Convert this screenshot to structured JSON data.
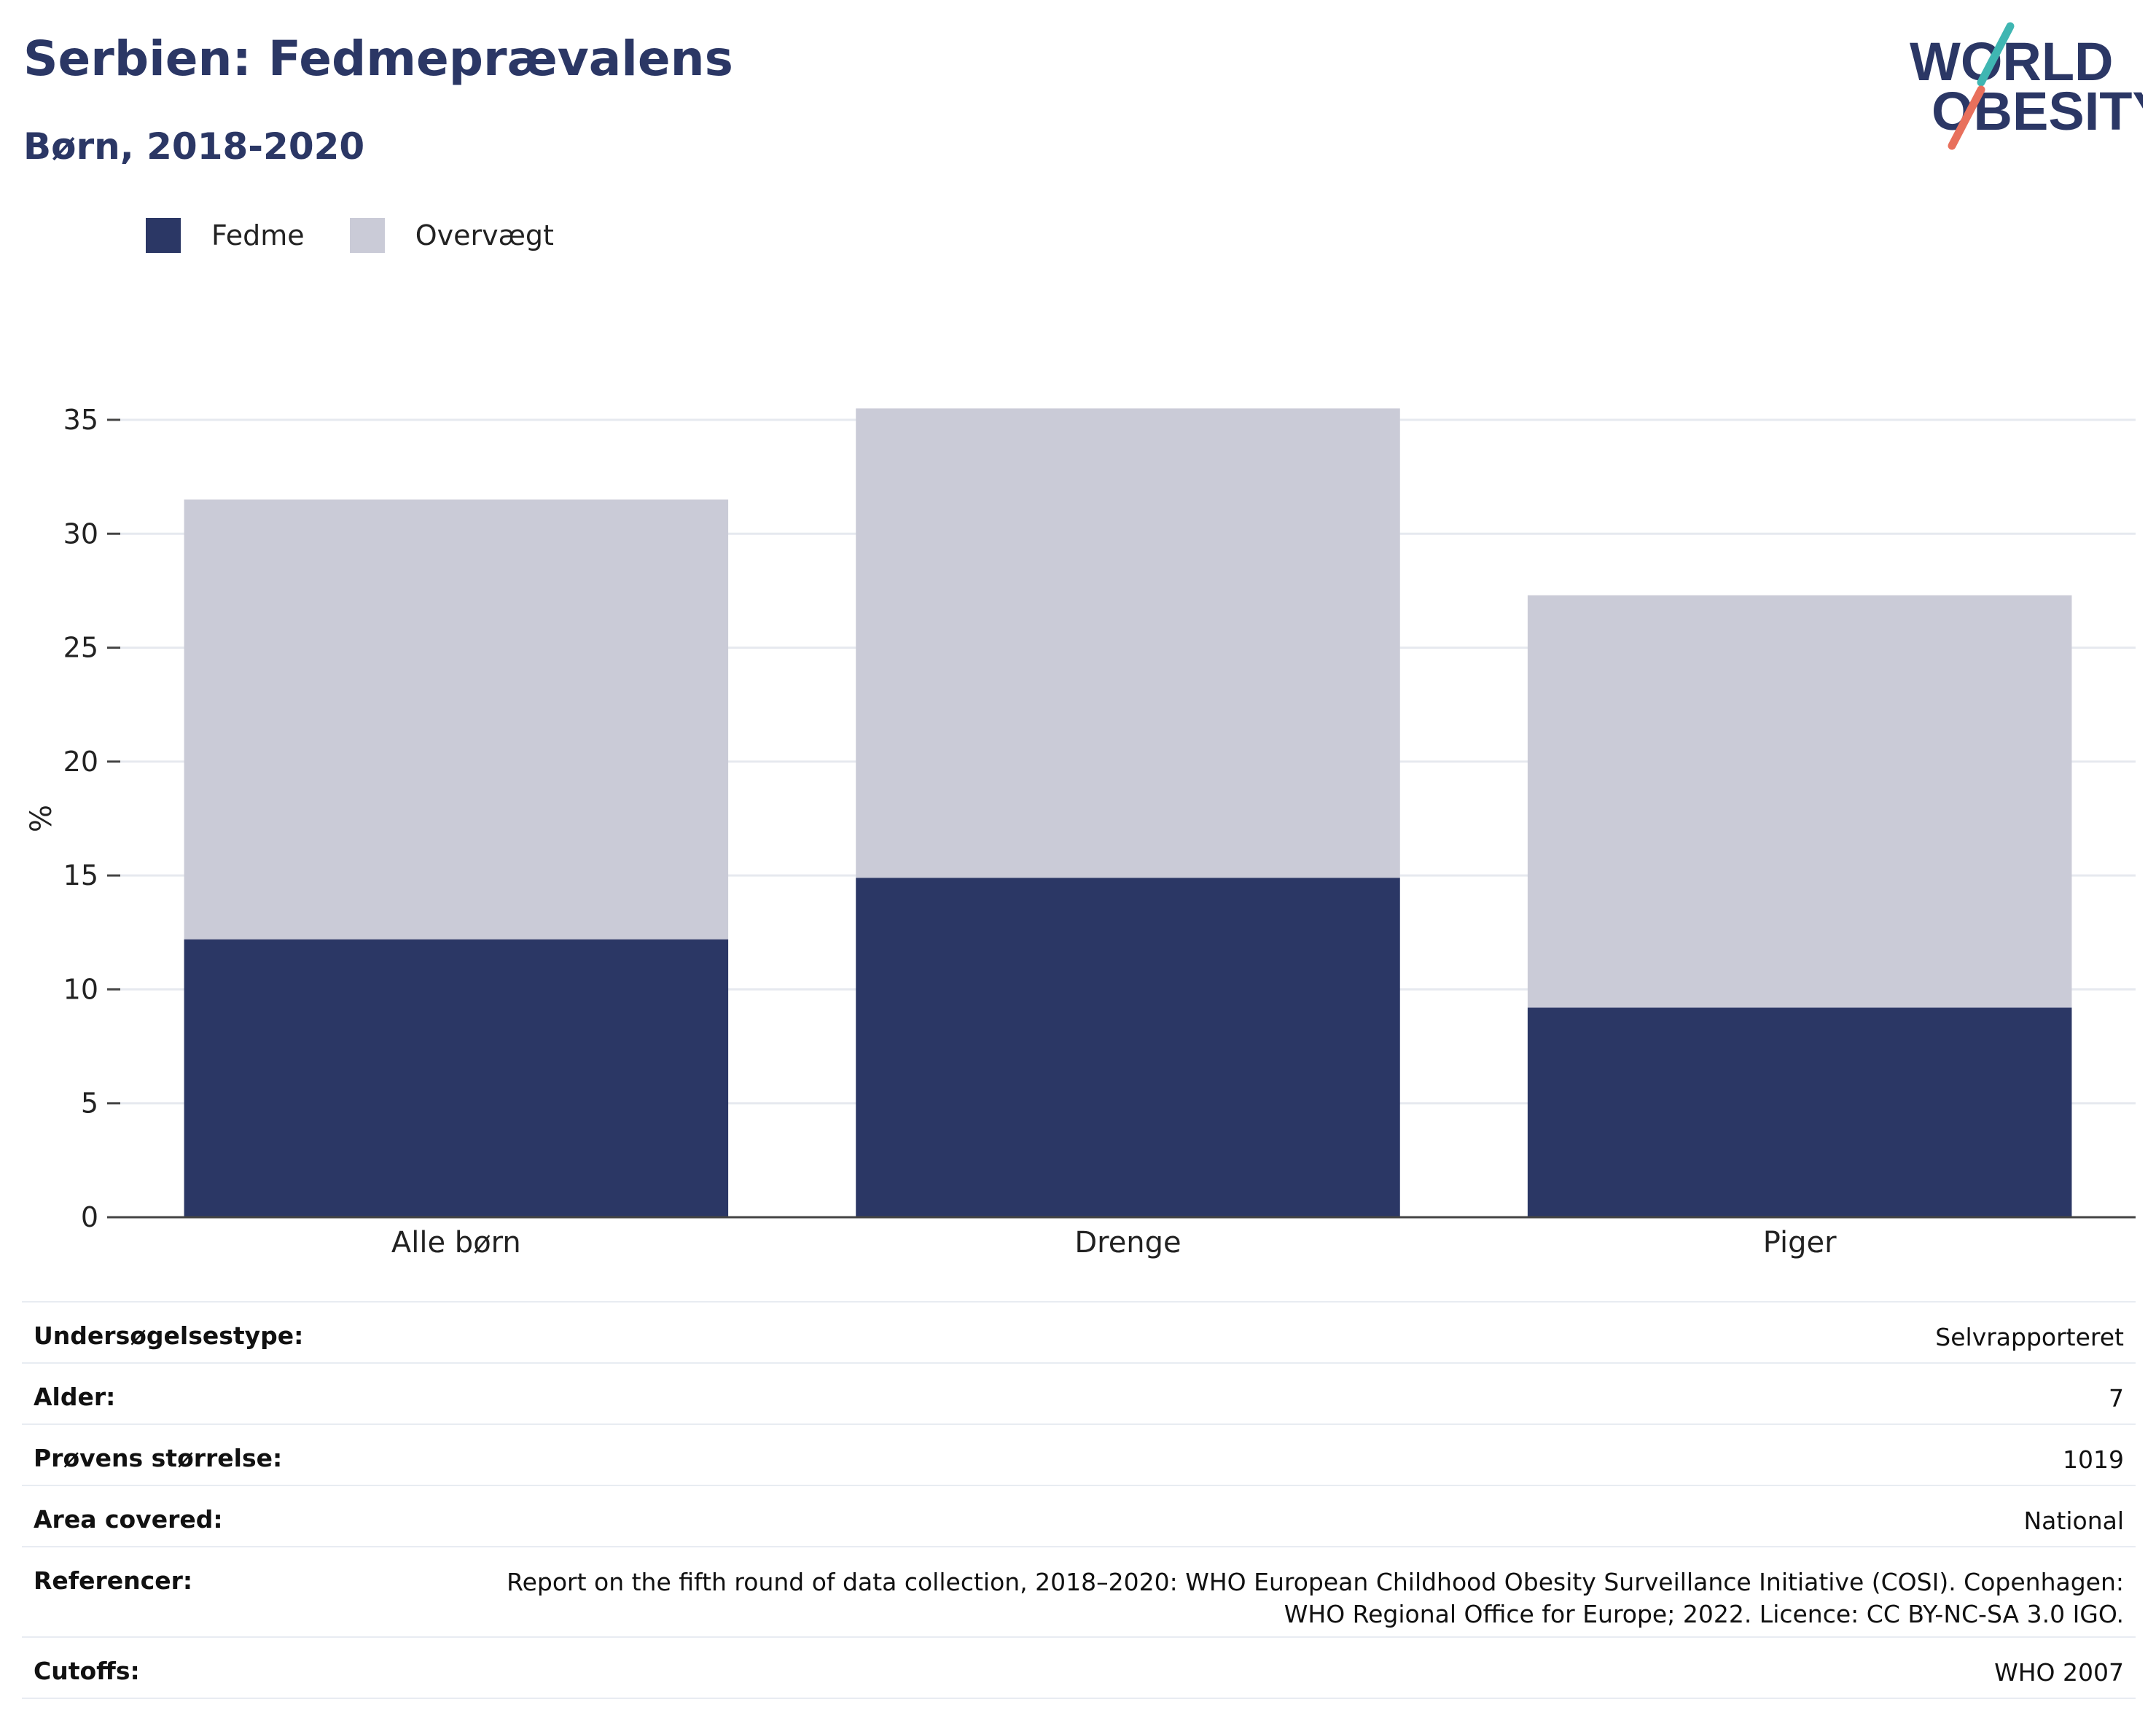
{
  "header": {
    "title": "Serbien: Fedmeprævalens",
    "subtitle": "Børn, 2018-2020"
  },
  "logo": {
    "line1": "WORLD",
    "line2": "OBESITY",
    "colors": {
      "text": "#2b3765",
      "accent_teal": "#3fb6b2",
      "accent_coral": "#e8705c"
    }
  },
  "legend": {
    "items": [
      {
        "label": "Fedme",
        "color": "#2b3765"
      },
      {
        "label": "Overvægt",
        "color": "#cacbd7"
      }
    ]
  },
  "chart_data": {
    "type": "bar",
    "stacked": true,
    "categories": [
      "Alle børn",
      "Drenge",
      "Piger"
    ],
    "series": [
      {
        "name": "Fedme",
        "values": [
          12.2,
          14.9,
          9.2
        ],
        "color": "#2b3765"
      },
      {
        "name": "Overvægt",
        "values": [
          19.3,
          20.6,
          18.1
        ],
        "color": "#cacbd7"
      }
    ],
    "ylabel": "%",
    "ylim": [
      0,
      36
    ],
    "yticks": [
      0,
      5,
      10,
      15,
      20,
      25,
      30,
      35
    ],
    "grid": true,
    "legend_position": "top-left"
  },
  "info_table": {
    "rows": [
      {
        "key": "Undersøgelsestype:",
        "value": "Selvrapporteret"
      },
      {
        "key": "Alder:",
        "value": "7"
      },
      {
        "key": "Prøvens størrelse:",
        "value": "1019"
      },
      {
        "key": "Area covered:",
        "value": "National"
      },
      {
        "key": "Referencer:",
        "value": "Report on the fifth round of data collection, 2018–2020: WHO European Childhood Obesity Surveillance Initiative (COSI). Copenhagen: WHO Regional Office for Europe; 2022. Licence: CC BY-NC-SA 3.0 IGO."
      },
      {
        "key": "Cutoffs:",
        "value": "WHO 2007"
      }
    ]
  }
}
